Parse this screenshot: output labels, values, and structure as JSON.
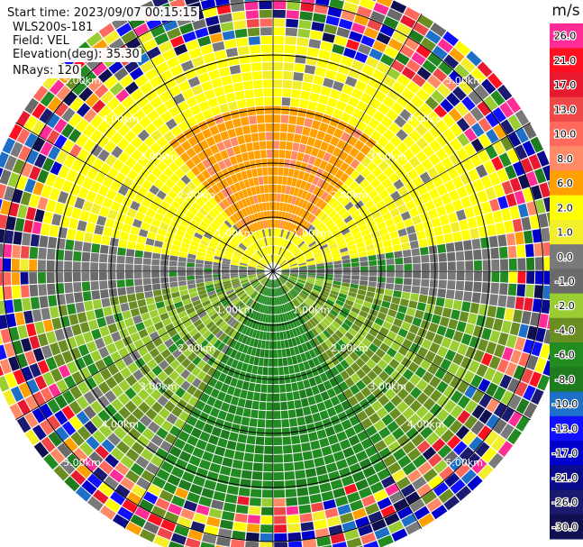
{
  "info": {
    "start_time": "Start time: 2023/09/07 00:15:15",
    "instrument": "WLS200s-181",
    "field": "Field: VEL",
    "elevation": "Elevation(deg): 35.30",
    "nrays": "NRays: 120"
  },
  "chart_data": {
    "type": "heatmap",
    "projection": "polar-ppi",
    "field": "VEL",
    "unit": "m/s",
    "rings_km": [
      1.0,
      2.0,
      3.0,
      4.0,
      5.0
    ],
    "ring_labels": [
      "1.00km",
      "2.00km",
      "3.00km",
      "4.00km",
      "5.00km"
    ],
    "nrays": 120,
    "max_range_km": 5.5,
    "colorbar": {
      "unit": "m/s",
      "tick_labels": [
        "26.0",
        "21.0",
        "17.0",
        "13.0",
        "10.0",
        "8.0",
        "6.0",
        "2.0",
        "1.0",
        "0.0",
        "-1.0",
        "-2.0",
        "-4.0",
        "-6.0",
        "-8.0",
        "-10.0",
        "-13.0",
        "-17.0",
        "-21.0",
        "-26.0",
        "-30.0"
      ],
      "colors": [
        "#ff2d95",
        "#ff1020",
        "#e8182e",
        "#f04848",
        "#ff6a5c",
        "#ff8a66",
        "#ffa000",
        "#ffff00",
        "#f2ee2a",
        "#7a7a7a",
        "#6a6a6a",
        "#9acd32",
        "#6b8e23",
        "#228b22",
        "#1e7b1e",
        "#1e6fc8",
        "#1010ff",
        "#0000cc",
        "#0a0a8c",
        "#1a1a6e",
        "#101050"
      ]
    },
    "regions": [
      {
        "sector": "north, near range",
        "velocity_ms": 6.0,
        "color": "orange"
      },
      {
        "sector": "north-east and north-west, near range",
        "velocity_ms": 2.0,
        "color": "yellow"
      },
      {
        "sector": "east-west strip",
        "velocity_ms": 0.0,
        "color": "gray"
      },
      {
        "sector": "south-west",
        "velocity_ms": -2.0,
        "color": "yellow-green"
      },
      {
        "sector": "south",
        "velocity_ms": -6.0,
        "color": "green"
      },
      {
        "sector": "outer ring beyond 4 km",
        "velocity_ms": null,
        "color": "noise"
      }
    ]
  }
}
